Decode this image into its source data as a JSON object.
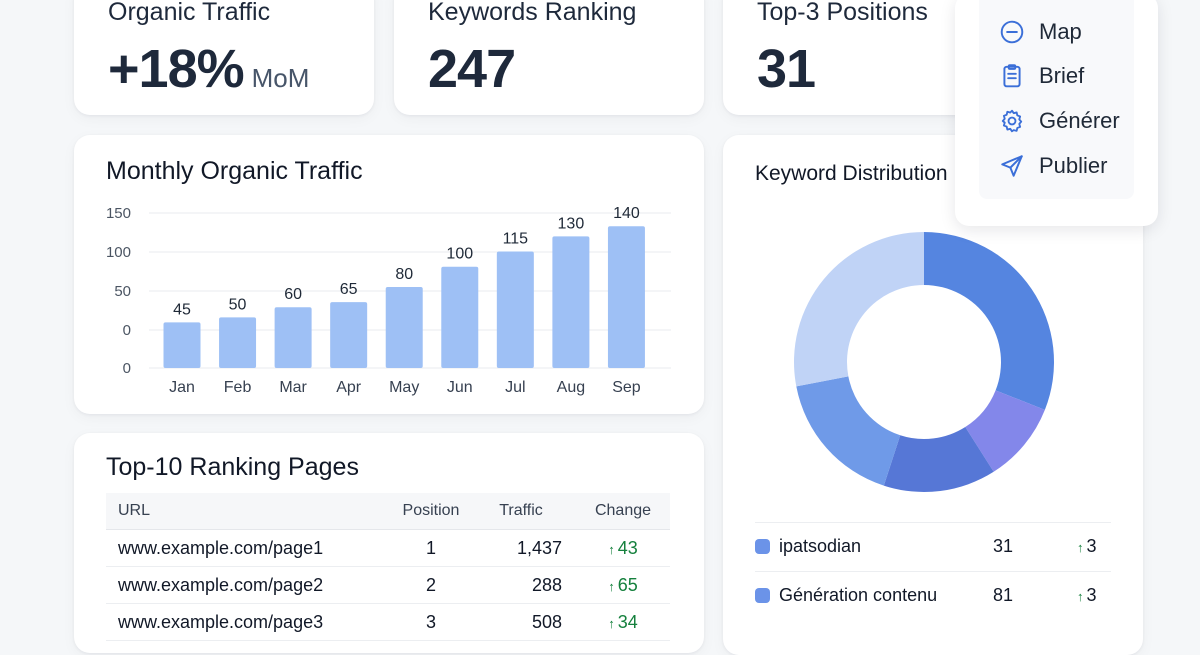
{
  "colors": {
    "bar": "#9ec0f5",
    "accent": "#3b6fd8",
    "up": "#15803d",
    "donut": [
      "#5585e0",
      "#8387ea",
      "#5677d6",
      "#6f9ae8",
      "#c0d3f6"
    ]
  },
  "kpis": [
    {
      "title": "Organic Traffic",
      "value": "+18%",
      "unit": "MoM"
    },
    {
      "title": "Keywords Ranking",
      "value": "247",
      "unit": ""
    },
    {
      "title": "Top-3 Positions",
      "value": "31",
      "unit": ""
    }
  ],
  "menu": {
    "items": [
      {
        "label": "Map",
        "icon": "minus-circle-icon"
      },
      {
        "label": "Brief",
        "icon": "clipboard-icon"
      },
      {
        "label": "Générer",
        "icon": "gear-icon"
      },
      {
        "label": "Publier",
        "icon": "send-icon"
      }
    ]
  },
  "traffic_chart": {
    "title": "Monthly Organic Traffic"
  },
  "chart_data": [
    {
      "type": "bar",
      "title": "Monthly Organic Traffic",
      "categories": [
        "Jan",
        "Feb",
        "Mar",
        "Apr",
        "May",
        "Jun",
        "Jul",
        "Aug",
        "Sep"
      ],
      "values": [
        45,
        50,
        60,
        65,
        80,
        100,
        115,
        130,
        140
      ],
      "data_labels": [
        "45",
        "50",
        "60",
        "65",
        "80",
        "100",
        "115",
        "130",
        "140"
      ],
      "y_ticks": [
        "150",
        "100",
        "50",
        "0",
        "0"
      ],
      "grid": true
    },
    {
      "type": "pie",
      "title": "Keyword Distribution",
      "donut": true,
      "slices": [
        {
          "share": 0.31
        },
        {
          "share": 0.1
        },
        {
          "share": 0.14
        },
        {
          "share": 0.17
        },
        {
          "share": 0.28
        }
      ]
    }
  ],
  "donut_chart": {
    "title": "Keyword Distribution",
    "legend": [
      {
        "label": "ipatsodian",
        "count": "31",
        "change": "3"
      },
      {
        "label": "Génération contenu",
        "count": "81",
        "change": "3"
      }
    ]
  },
  "pages_table": {
    "title": "Top-10 Ranking Pages",
    "columns": [
      "URL",
      "Position",
      "Traffic",
      "Change"
    ],
    "rows": [
      {
        "url": "www.example.com/page1",
        "position": "1",
        "traffic": "1,437",
        "change": "43"
      },
      {
        "url": "www.example.com/page2",
        "position": "2",
        "traffic": "288",
        "change": "65"
      },
      {
        "url": "www.example.com/page3",
        "position": "3",
        "traffic": "508",
        "change": "34"
      }
    ]
  }
}
